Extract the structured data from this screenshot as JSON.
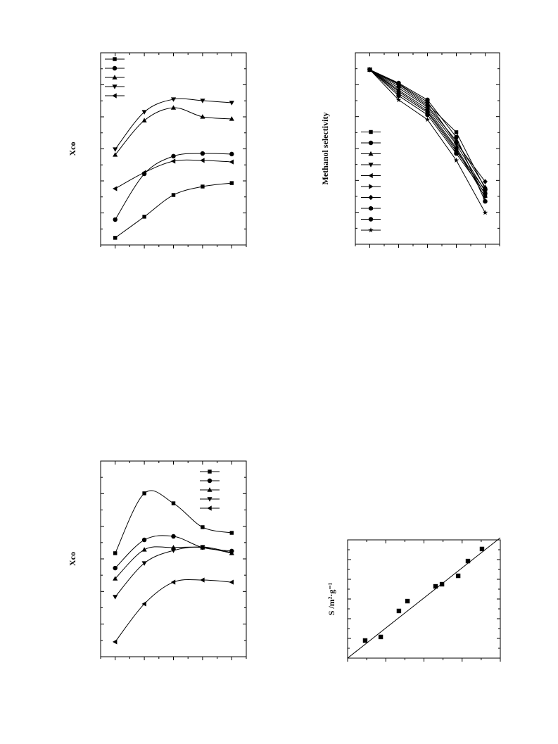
{
  "chart_data": [
    {
      "type": "line",
      "smooth": true,
      "y_label": "Xco",
      "categories": [
        null,
        null,
        null,
        null,
        null
      ],
      "ylim": [
        0,
        100
      ],
      "legend": "upper left",
      "series": [
        {
          "marker": "square",
          "color": "#000000",
          "values": [
            3.7,
            14.7,
            26.0,
            30.4,
            32.2
          ]
        },
        {
          "marker": "circle",
          "color": "#000000",
          "values": [
            13.2,
            37.0,
            46.2,
            47.6,
            47.3
          ]
        },
        {
          "marker": "triangle-up",
          "color": "#000000",
          "values": [
            46.9,
            64.8,
            71.4,
            66.7,
            65.6
          ]
        },
        {
          "marker": "triangle-down",
          "color": "#000000",
          "values": [
            49.8,
            69.2,
            75.8,
            75.1,
            74.0
          ]
        },
        {
          "marker": "triangle-left",
          "color": "#000000",
          "values": [
            29.3,
            37.7,
            43.6,
            44.0,
            43.2
          ]
        }
      ]
    },
    {
      "type": "line",
      "smooth": false,
      "y_label": "Methanol selectivity",
      "categories": [
        null,
        null,
        null,
        null,
        null
      ],
      "ylim": [
        0,
        100
      ],
      "legend": "lower left",
      "series": [
        {
          "marker": "square",
          "color": "#000000",
          "values": [
            91.2,
            83.5,
            73.2,
            58.5,
            29.0
          ]
        },
        {
          "marker": "circle",
          "color": "#000000",
          "values": [
            91.2,
            84.2,
            75.4,
            55.9,
            22.4
          ]
        },
        {
          "marker": "triangle-up",
          "color": "#000000",
          "values": [
            91.2,
            82.7,
            72.4,
            54.0,
            29.8
          ]
        },
        {
          "marker": "triangle-down",
          "color": "#000000",
          "values": [
            91.2,
            81.6,
            71.7,
            52.2,
            27.6
          ]
        },
        {
          "marker": "triangle-left",
          "color": "#000000",
          "values": [
            91.2,
            80.5,
            70.6,
            50.4,
            26.1
          ]
        },
        {
          "marker": "triangle-right",
          "color": "#000000",
          "values": [
            91.2,
            79.8,
            69.5,
            49.6,
            24.6
          ]
        },
        {
          "marker": "diamond",
          "color": "#000000",
          "values": [
            91.2,
            83.8,
            74.3,
            52.9,
            32.7
          ]
        },
        {
          "marker": "hexagon",
          "color": "#000000",
          "values": [
            91.2,
            78.7,
            68.8,
            48.5,
            28.3
          ]
        },
        {
          "marker": "circle",
          "color": "#000000",
          "values": [
            91.2,
            77.6,
            67.6,
            47.4,
            26.5
          ]
        },
        {
          "marker": "star",
          "color": "#000000",
          "values": [
            91.2,
            75.4,
            65.1,
            43.8,
            16.5
          ]
        }
      ]
    },
    {
      "type": "line",
      "smooth": true,
      "y_label": "Xco",
      "categories": [
        null,
        null,
        null,
        null,
        null
      ],
      "ylim": [
        0,
        100
      ],
      "legend": "upper right",
      "series": [
        {
          "marker": "square",
          "color": "#000000",
          "values": [
            52.9,
            83.5,
            78.4,
            66.2,
            63.3
          ]
        },
        {
          "marker": "circle",
          "color": "#000000",
          "values": [
            45.3,
            59.7,
            61.5,
            55.8,
            54.0
          ]
        },
        {
          "marker": "triangle-up",
          "color": "#000000",
          "values": [
            39.9,
            54.7,
            55.8,
            55.8,
            52.9
          ]
        },
        {
          "marker": "triangle-down",
          "color": "#000000",
          "values": [
            30.6,
            47.8,
            54.3,
            56.1,
            53.2
          ]
        },
        {
          "marker": "triangle-left",
          "color": "#000000",
          "values": [
            7.6,
            27.0,
            38.1,
            39.2,
            38.1
          ]
        }
      ]
    },
    {
      "type": "scatter",
      "y_label": "S /m²·g⁻¹",
      "xlim": [
        0,
        100
      ],
      "ylim": [
        0,
        100
      ],
      "diagonal": true,
      "x": [
        11.5,
        21.7,
        33.6,
        39.2,
        57.6,
        61.8,
        72.4,
        78.8,
        88.0
      ],
      "series": [
        {
          "marker": "square",
          "color": "#000000",
          "values": [
            14.9,
            17.9,
            39.9,
            48.2,
            60.7,
            62.5,
            69.6,
            82.1,
            92.3
          ]
        }
      ]
    }
  ]
}
